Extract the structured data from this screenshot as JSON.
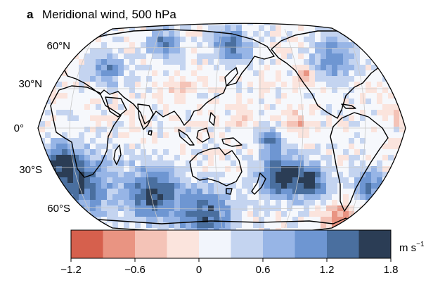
{
  "panel": {
    "letter": "a",
    "title": "Meridional wind, 500 hPa"
  },
  "map": {
    "projection": "Robinson",
    "central_longitude": "180°",
    "lat_labels": [
      "60°N",
      "30°N",
      "0°",
      "30°S",
      "60°S"
    ],
    "ocean_base_color": "#f6f8fc",
    "coastline_color": "#000000",
    "grid_color": "#c8c8c8"
  },
  "colorbar": {
    "unit_text": "m s",
    "unit_exponent": "−1",
    "tick_labels": [
      "−1.2",
      "−0.6",
      "0",
      "0.6",
      "1.2",
      "1.8"
    ],
    "bins": [
      -1.2,
      -0.9,
      -0.6,
      -0.3,
      0,
      0.3,
      0.6,
      0.9,
      1.2,
      1.5,
      1.8
    ],
    "colors": [
      "#d6604d",
      "#e99482",
      "#f4c3b7",
      "#fbe4dd",
      "#f2f5fc",
      "#c4d4f0",
      "#97b5e6",
      "#6e96d2",
      "#4a6f9f",
      "#2b3d55"
    ]
  }
}
